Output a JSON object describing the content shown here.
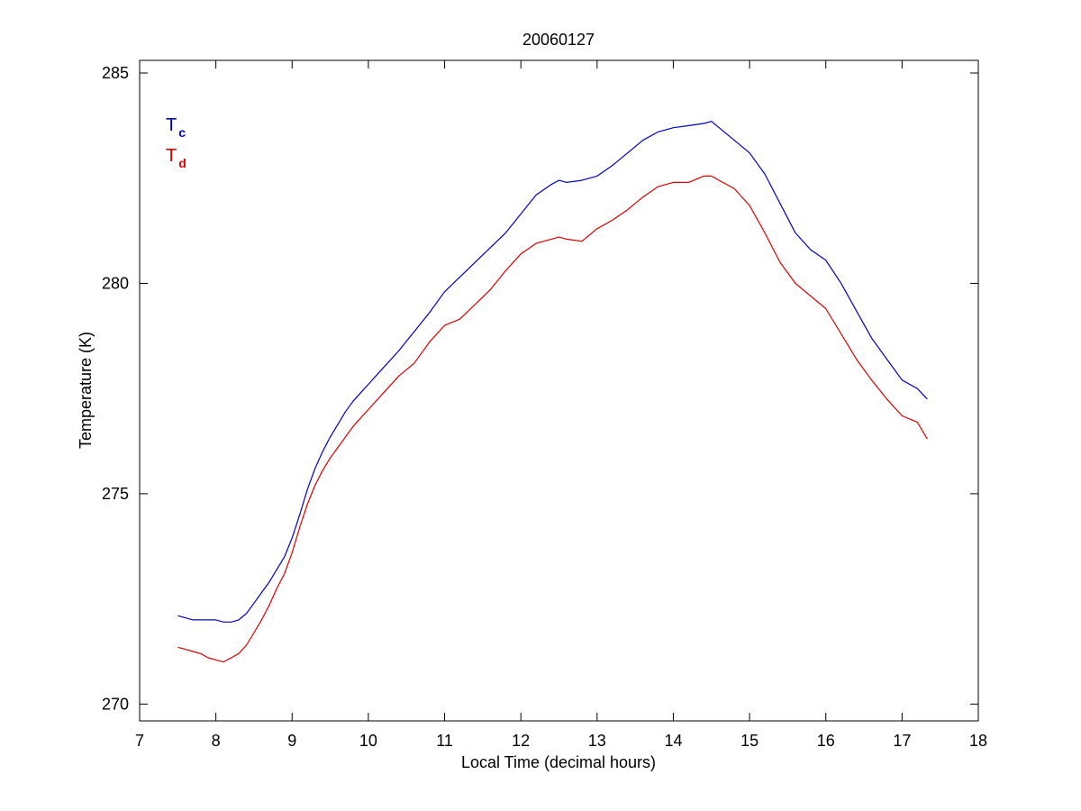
{
  "chart_data": {
    "type": "line",
    "title": "20060127",
    "xlabel": "Local Time (decimal hours)",
    "ylabel": "Temperature (K)",
    "xlim": [
      7,
      18
    ],
    "ylim": [
      269.6,
      285.3
    ],
    "xticks": [
      7,
      8,
      9,
      10,
      11,
      12,
      13,
      14,
      15,
      16,
      17,
      18
    ],
    "yticks": [
      270,
      275,
      280,
      285
    ],
    "grid": false,
    "legend": {
      "placement": "top-left",
      "entries": [
        {
          "main": "T",
          "sub": "c",
          "color": "#0000c8"
        },
        {
          "main": "T",
          "sub": "d",
          "color": "#dc0000"
        }
      ]
    },
    "series": [
      {
        "color": "#0000c8",
        "x": [
          7.5,
          7.6,
          7.7,
          7.8,
          7.9,
          8.0,
          8.1,
          8.2,
          8.3,
          8.4,
          8.5,
          8.6,
          8.7,
          8.8,
          8.9,
          9.0,
          9.1,
          9.2,
          9.3,
          9.4,
          9.5,
          9.6,
          9.7,
          9.8,
          9.9,
          10.0,
          10.2,
          10.4,
          10.6,
          10.8,
          11.0,
          11.2,
          11.4,
          11.6,
          11.8,
          12.0,
          12.2,
          12.4,
          12.5,
          12.6,
          12.8,
          13.0,
          13.2,
          13.4,
          13.6,
          13.8,
          14.0,
          14.2,
          14.4,
          14.5,
          14.6,
          14.8,
          15.0,
          15.2,
          15.4,
          15.6,
          15.8,
          16.0,
          16.2,
          16.4,
          16.6,
          16.8,
          17.0,
          17.2,
          17.33
        ],
        "values": [
          272.1,
          272.05,
          272.0,
          272.0,
          272.0,
          272.0,
          271.95,
          271.95,
          272.0,
          272.15,
          272.4,
          272.65,
          272.9,
          273.2,
          273.5,
          273.95,
          274.5,
          275.1,
          275.6,
          276.0,
          276.35,
          276.65,
          276.95,
          277.2,
          277.4,
          277.6,
          278.0,
          278.4,
          278.85,
          279.3,
          279.8,
          280.15,
          280.5,
          280.85,
          281.2,
          281.65,
          282.1,
          282.35,
          282.45,
          282.4,
          282.45,
          282.55,
          282.8,
          283.1,
          283.4,
          283.6,
          283.7,
          283.75,
          283.8,
          283.85,
          283.7,
          283.4,
          283.1,
          282.6,
          281.9,
          281.2,
          280.8,
          280.55,
          280.0,
          279.35,
          278.7,
          278.2,
          277.7,
          277.5,
          277.25
        ]
      },
      {
        "color": "#dc0000",
        "x": [
          7.5,
          7.6,
          7.7,
          7.8,
          7.9,
          8.0,
          8.1,
          8.2,
          8.3,
          8.4,
          8.5,
          8.6,
          8.7,
          8.8,
          8.9,
          9.0,
          9.1,
          9.2,
          9.3,
          9.4,
          9.5,
          9.6,
          9.7,
          9.8,
          9.9,
          10.0,
          10.2,
          10.4,
          10.6,
          10.8,
          11.0,
          11.2,
          11.4,
          11.6,
          11.8,
          12.0,
          12.2,
          12.4,
          12.5,
          12.6,
          12.8,
          13.0,
          13.2,
          13.4,
          13.6,
          13.8,
          14.0,
          14.2,
          14.4,
          14.5,
          14.6,
          14.8,
          15.0,
          15.2,
          15.4,
          15.6,
          15.8,
          16.0,
          16.2,
          16.4,
          16.6,
          16.8,
          17.0,
          17.2,
          17.33
        ],
        "values": [
          271.35,
          271.3,
          271.25,
          271.2,
          271.1,
          271.05,
          271.0,
          271.1,
          271.2,
          271.4,
          271.7,
          272.0,
          272.35,
          272.75,
          273.1,
          273.6,
          274.2,
          274.75,
          275.2,
          275.55,
          275.85,
          276.1,
          276.35,
          276.6,
          276.8,
          277.0,
          277.4,
          277.8,
          278.1,
          278.6,
          279.0,
          279.15,
          279.5,
          279.85,
          280.3,
          280.7,
          280.95,
          281.05,
          281.1,
          281.05,
          281.0,
          281.3,
          281.5,
          281.75,
          282.05,
          282.3,
          282.4,
          282.4,
          282.55,
          282.55,
          282.45,
          282.25,
          281.85,
          281.2,
          280.5,
          280.0,
          279.7,
          279.4,
          278.8,
          278.2,
          277.7,
          277.25,
          276.85,
          276.7,
          276.3
        ]
      }
    ]
  }
}
